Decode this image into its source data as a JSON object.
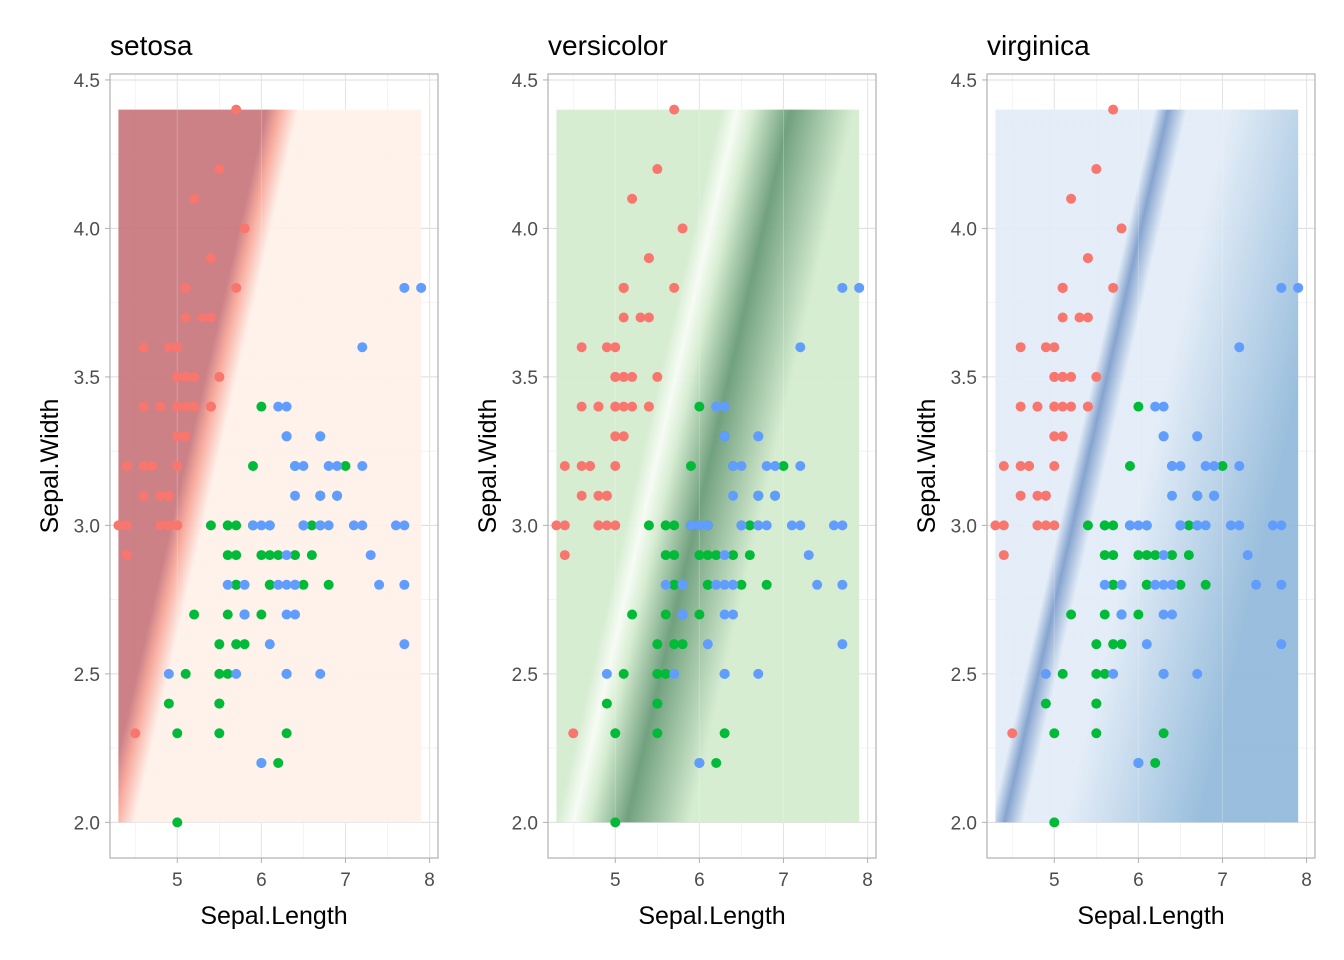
{
  "chart_data": [
    {
      "type": "scatter",
      "title": "setosa",
      "xlabel": "Sepal.Length",
      "ylabel": "Sepal.Width",
      "xlim": [
        4.2,
        8.1
      ],
      "ylim": [
        1.88,
        4.52
      ],
      "xticks": [
        "5",
        "6",
        "7",
        "8"
      ],
      "yticks": [
        "2.0",
        "2.5",
        "3.0",
        "3.5",
        "4.0",
        "4.5"
      ],
      "grid": true,
      "background": {
        "type": "decision-boundary",
        "boundary_line": {
          "x_at_bottom": 4.3,
          "x_at_top": 6.25
        },
        "fill_region_color": "#c87a80",
        "other_region_color": "#fef1ea",
        "edge_color": "#f8a89a",
        "x_range": [
          4.3,
          7.9
        ],
        "y_range": [
          2.0,
          4.4
        ]
      }
    },
    {
      "type": "scatter",
      "title": "versicolor",
      "xlabel": "Sepal.Length",
      "ylabel": "Sepal.Width",
      "xlim": [
        4.2,
        8.1
      ],
      "ylim": [
        1.88,
        4.52
      ],
      "xticks": [
        "5",
        "6",
        "7",
        "8"
      ],
      "yticks": [
        "2.0",
        "2.5",
        "3.0",
        "3.5",
        "4.0",
        "4.5"
      ],
      "grid": true,
      "background": {
        "type": "probability-gradient",
        "boundary_line": {
          "x_at_bottom": 4.5,
          "x_at_top": 6.45
        },
        "base_color": "#d5ecd0",
        "peak_color": "#6a9c78",
        "ridge_color": "#f6fbf4",
        "x_range": [
          4.3,
          7.9
        ],
        "y_range": [
          2.0,
          4.4
        ]
      }
    },
    {
      "type": "scatter",
      "title": "virginica",
      "xlabel": "Sepal.Length",
      "ylabel": "Sepal.Width",
      "xlim": [
        4.2,
        8.1
      ],
      "ylim": [
        1.88,
        4.52
      ],
      "xticks": [
        "5",
        "6",
        "7",
        "8"
      ],
      "yticks": [
        "2.0",
        "2.5",
        "3.0",
        "3.5",
        "4.0",
        "4.5"
      ],
      "grid": true,
      "background": {
        "type": "probability-gradient",
        "boundary_line": {
          "x_at_bottom": 4.5,
          "x_at_top": 6.45
        },
        "base_color": "#e2ecf7",
        "peak_color": "#94bbdb",
        "ridge_color": "#7f9fcd",
        "x_range": [
          4.3,
          7.9
        ],
        "y_range": [
          2.0,
          4.4
        ]
      }
    }
  ],
  "points": {
    "setosa": {
      "color": "#f8766d",
      "x": [
        5.1,
        4.9,
        4.7,
        4.6,
        5.0,
        5.4,
        4.6,
        5.0,
        4.4,
        4.9,
        5.4,
        4.8,
        4.8,
        4.3,
        5.8,
        5.7,
        5.4,
        5.1,
        5.7,
        5.1,
        5.4,
        5.1,
        4.6,
        5.1,
        4.8,
        5.0,
        5.0,
        5.2,
        5.2,
        4.7,
        4.8,
        5.4,
        5.2,
        5.5,
        4.9,
        5.0,
        5.5,
        4.9,
        4.4,
        5.1,
        5.0,
        4.5,
        4.4,
        5.0,
        5.1,
        4.8,
        5.1,
        4.6,
        5.3,
        5.0
      ],
      "y": [
        3.5,
        3.0,
        3.2,
        3.1,
        3.6,
        3.9,
        3.4,
        3.4,
        2.9,
        3.1,
        3.7,
        3.4,
        3.0,
        3.0,
        4.0,
        4.4,
        3.9,
        3.5,
        3.8,
        3.8,
        3.4,
        3.7,
        3.6,
        3.3,
        3.4,
        3.0,
        3.4,
        3.5,
        3.4,
        3.2,
        3.1,
        3.4,
        4.1,
        4.2,
        3.1,
        3.2,
        3.5,
        3.6,
        3.0,
        3.4,
        3.5,
        2.3,
        3.2,
        3.5,
        3.8,
        3.0,
        3.8,
        3.2,
        3.7,
        3.3
      ]
    },
    "versicolor": {
      "color": "#00ba38",
      "x": [
        7.0,
        6.4,
        6.9,
        5.5,
        6.5,
        5.7,
        6.3,
        4.9,
        6.6,
        5.2,
        5.0,
        5.9,
        6.0,
        6.1,
        5.6,
        6.7,
        5.6,
        5.8,
        6.2,
        5.6,
        5.9,
        6.1,
        6.3,
        6.1,
        6.4,
        6.6,
        6.8,
        6.7,
        6.0,
        5.7,
        5.5,
        5.5,
        5.8,
        6.0,
        5.4,
        6.0,
        6.7,
        6.3,
        5.6,
        5.5,
        5.5,
        6.1,
        5.8,
        5.0,
        5.6,
        5.7,
        5.7,
        6.2,
        5.1,
        5.7
      ],
      "y": [
        3.2,
        3.2,
        3.1,
        2.3,
        2.8,
        2.8,
        3.3,
        2.4,
        2.9,
        2.7,
        2.0,
        3.0,
        2.2,
        2.9,
        2.9,
        3.1,
        3.0,
        2.7,
        2.2,
        2.5,
        3.2,
        2.8,
        2.5,
        2.8,
        2.9,
        3.0,
        2.8,
        3.0,
        2.9,
        2.6,
        2.4,
        2.4,
        2.7,
        2.7,
        3.0,
        3.4,
        3.1,
        2.3,
        3.0,
        2.5,
        2.6,
        3.0,
        2.6,
        2.3,
        2.7,
        3.0,
        2.9,
        2.9,
        2.5,
        2.8
      ]
    },
    "virginica": {
      "color": "#619cff",
      "x": [
        6.3,
        5.8,
        7.1,
        6.3,
        6.5,
        7.6,
        4.9,
        7.3,
        6.7,
        7.2,
        6.5,
        6.4,
        6.8,
        5.7,
        5.8,
        6.4,
        6.5,
        7.7,
        7.7,
        6.0,
        6.9,
        5.6,
        7.7,
        6.3,
        6.7,
        7.2,
        6.2,
        6.1,
        6.4,
        7.2,
        7.4,
        7.9,
        6.4,
        6.3,
        6.1,
        7.7,
        6.3,
        6.4,
        6.0,
        6.9,
        6.7,
        6.9,
        5.8,
        6.8,
        6.7,
        6.7,
        6.3,
        6.5,
        6.2,
        5.9
      ],
      "y": [
        3.3,
        2.7,
        3.0,
        2.9,
        3.0,
        3.0,
        2.5,
        2.9,
        2.5,
        3.6,
        3.2,
        2.7,
        3.0,
        2.5,
        2.8,
        3.2,
        3.0,
        3.8,
        2.6,
        2.2,
        3.2,
        2.8,
        2.8,
        2.7,
        3.3,
        3.2,
        2.8,
        3.0,
        2.8,
        3.0,
        2.8,
        3.8,
        2.8,
        2.8,
        2.6,
        3.0,
        3.4,
        3.1,
        3.0,
        3.1,
        3.1,
        3.1,
        2.7,
        3.2,
        3.3,
        3.0,
        2.5,
        3.0,
        3.4,
        3.0
      ]
    }
  }
}
